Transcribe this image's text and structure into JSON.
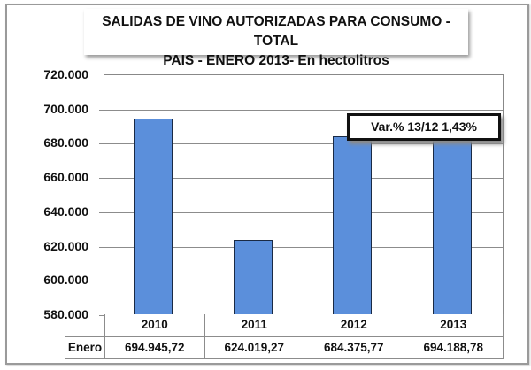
{
  "chart_data": {
    "type": "bar",
    "title": "SALIDAS DE VINO AUTORIZADAS PARA CONSUMO - TOTAL PAIS - ENERO 2013- En hectolitros",
    "title_lines": [
      "SALIDAS DE VINO AUTORIZADAS PARA CONSUMO - TOTAL",
      "PAIS  - ENERO 2013-  En hectolitros"
    ],
    "categories": [
      "2010",
      "2011",
      "2012",
      "2013"
    ],
    "series": [
      {
        "name": "Enero",
        "values": [
          694945.72,
          624019.27,
          684375.77,
          694188.78
        ],
        "value_labels": [
          "694.945,72",
          "624.019,27",
          "684.375,77",
          "694.188,78"
        ]
      }
    ],
    "xlabel": "",
    "ylabel": "",
    "ylim": [
      580000,
      720000
    ],
    "yticks": [
      580000,
      600000,
      620000,
      640000,
      660000,
      680000,
      700000,
      720000
    ],
    "ytick_labels": [
      "580.000",
      "600.000",
      "620.000",
      "640.000",
      "660.000",
      "680.000",
      "700.000",
      "720.000"
    ],
    "grid": true,
    "legend": "data table below chart",
    "annotation": "Var.% 13/12 1,43%",
    "bar_color": "#5b8fdb"
  },
  "table": {
    "row_label": "Enero",
    "headers": [
      "2010",
      "2011",
      "2012",
      "2013"
    ],
    "values": [
      "694.945,72",
      "624.019,27",
      "684.375,77",
      "694.188,78"
    ]
  }
}
